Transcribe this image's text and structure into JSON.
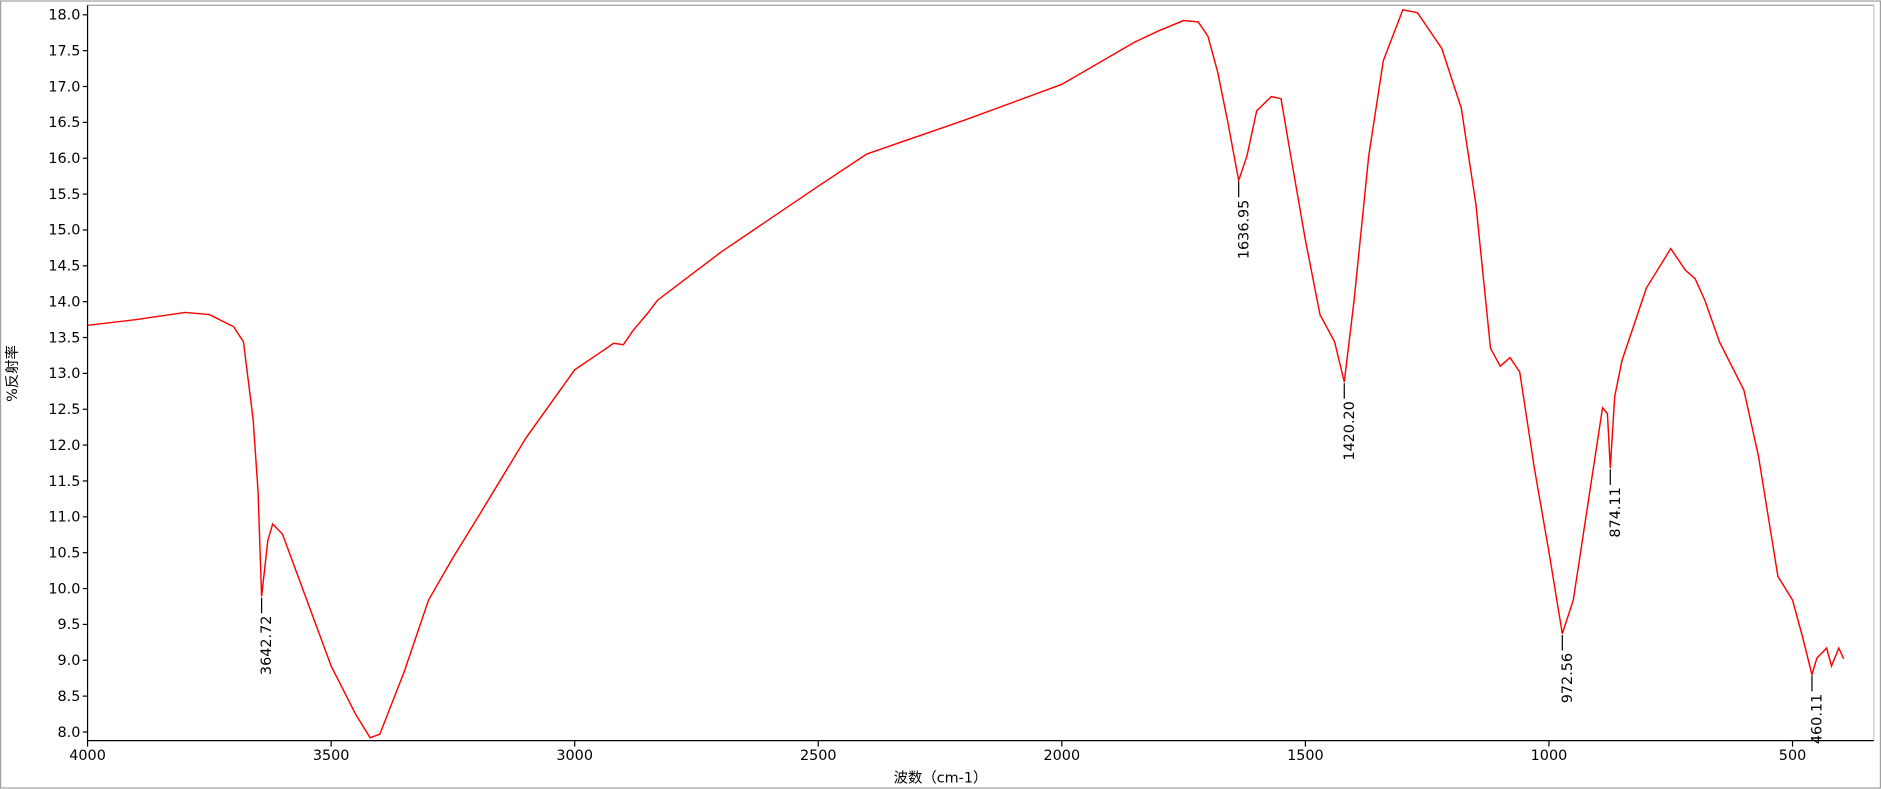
{
  "chart_data": {
    "type": "line",
    "x_label": "波数（cm-1）",
    "y_label": "%反射率",
    "color": "#ff0000",
    "x": [
      4000,
      3900,
      3800,
      3750,
      3700,
      3680,
      3660,
      3650,
      3642.72,
      3630,
      3620,
      3600,
      3550,
      3500,
      3450,
      3420,
      3400,
      3350,
      3300,
      3250,
      3200,
      3100,
      3000,
      2950,
      2920,
      2900,
      2880,
      2850,
      2830,
      2700,
      2500,
      2400,
      2200,
      2000,
      1850,
      1800,
      1750,
      1720,
      1700,
      1680,
      1660,
      1636.95,
      1620,
      1600,
      1570,
      1550,
      1530,
      1500,
      1470,
      1440,
      1420.2,
      1400,
      1370,
      1340,
      1300,
      1270,
      1220,
      1180,
      1150,
      1120,
      1100,
      1080,
      1060,
      1030,
      1000,
      972.56,
      950,
      920,
      890,
      880,
      874.11,
      865,
      850,
      800,
      750,
      720,
      700,
      680,
      650,
      600,
      570,
      530,
      500,
      480,
      460.11,
      450,
      430,
      420,
      405,
      395
    ],
    "values": [
      13.67,
      13.75,
      13.85,
      13.82,
      13.65,
      13.44,
      12.35,
      11.35,
      9.89,
      10.67,
      10.9,
      10.76,
      9.84,
      8.92,
      8.25,
      7.92,
      7.97,
      8.84,
      9.84,
      10.43,
      10.98,
      12.1,
      13.05,
      13.28,
      13.42,
      13.4,
      13.6,
      13.84,
      14.02,
      14.69,
      15.61,
      16.06,
      16.53,
      17.03,
      17.62,
      17.78,
      17.92,
      17.9,
      17.7,
      17.2,
      16.53,
      15.69,
      16.03,
      16.66,
      16.86,
      16.83,
      16.03,
      14.86,
      13.82,
      13.44,
      12.88,
      14.02,
      16.03,
      17.36,
      18.07,
      18.03,
      17.53,
      16.7,
      15.36,
      13.35,
      13.1,
      13.22,
      13.02,
      11.68,
      10.51,
      9.37,
      9.84,
      11.18,
      12.52,
      12.44,
      11.68,
      12.68,
      13.18,
      14.19,
      14.74,
      14.44,
      14.32,
      14.02,
      13.44,
      12.77,
      11.85,
      10.17,
      9.84,
      9.34,
      8.8,
      9.03,
      9.17,
      8.92,
      9.17,
      9.02
    ],
    "xlim": [
      4000,
      375
    ],
    "ylim": [
      7.88,
      18.1
    ],
    "xticks": [
      4000,
      3500,
      3000,
      2500,
      2000,
      1500,
      1000,
      500
    ],
    "yticks": [
      {
        "value": 8,
        "label": "8.0"
      },
      8.5,
      {
        "value": 9,
        "label": "9.0"
      },
      9.5,
      {
        "value": 10,
        "label": "10.0"
      },
      10.5,
      {
        "value": 11,
        "label": "11.0"
      },
      11.5,
      {
        "value": 12,
        "label": "12.0"
      },
      12.5,
      {
        "value": 13,
        "label": "13.0"
      },
      13.5,
      {
        "value": 14,
        "label": "14.0"
      },
      14.5,
      {
        "value": 15,
        "label": "15.0"
      },
      15.5,
      {
        "value": 16,
        "label": "16.0"
      },
      16.5,
      {
        "value": 17,
        "label": "17.0"
      },
      17.5,
      {
        "value": 18,
        "label": "18.0"
      }
    ],
    "annotations": [
      {
        "x": 3642.72,
        "y": 9.89,
        "label": "3642.72"
      },
      {
        "x": 1636.95,
        "y": 15.69,
        "label": "1636.95"
      },
      {
        "x": 1420.2,
        "y": 12.88,
        "label": "1420.20"
      },
      {
        "x": 972.56,
        "y": 9.37,
        "label": "972.56"
      },
      {
        "x": 874.11,
        "y": 11.68,
        "label": "874.11"
      },
      {
        "x": 460.11,
        "y": 8.8,
        "label": "460.11"
      }
    ]
  }
}
